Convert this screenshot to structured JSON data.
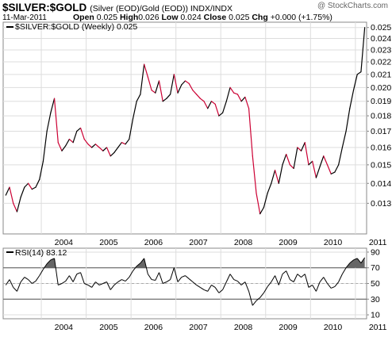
{
  "header": {
    "symbol": "$SILVER:$GOLD",
    "subtitle": "(Silver (EOD)/Gold (EOD))  INDX/INDX",
    "date": "11-Mar-2011",
    "open_label": "Open",
    "open": "0.025",
    "high_label": "High",
    "high": "0.026",
    "low_label": "Low",
    "low": "0.024",
    "close_label": "Close",
    "close": "0.025",
    "chg_label": "Chg",
    "chg": "+0.000 (+1.75%)",
    "watermark": "@ StockCharts.com"
  },
  "colors": {
    "up_line": "#000000",
    "down_line": "#cc0033",
    "grid": "#dddddd",
    "rsi_fill": "#666666",
    "legend_swatch": "#000000"
  },
  "chart_data": [
    {
      "type": "line",
      "legend": "$SILVER:$GOLD (Weekly) 0.025",
      "x_tick_labels": [
        "2004",
        "2005",
        "2006",
        "2007",
        "2008",
        "2009",
        "2010",
        "2011"
      ],
      "y_tick_labels": [
        "0.025",
        "0.024",
        "0.023",
        "0.022",
        "0.021",
        "0.020",
        "0.019",
        "0.018",
        "0.017",
        "0.016",
        "0.015",
        "0.014",
        "0.013"
      ],
      "ylim": [
        0.0116,
        0.0255
      ],
      "y_scale": "log",
      "grid": true,
      "legend_position": "top-left",
      "series": [
        {
          "x": [
            "2003-03",
            "2003-04",
            "2003-05",
            "2003-06",
            "2003-07",
            "2003-08",
            "2003-09",
            "2003-10",
            "2003-11",
            "2003-12",
            "2004-01",
            "2004-02",
            "2004-03",
            "2004-04",
            "2004-05",
            "2004-06",
            "2004-07",
            "2004-08",
            "2004-09",
            "2004-10",
            "2004-11",
            "2004-12",
            "2005-01",
            "2005-02",
            "2005-03",
            "2005-04",
            "2005-05",
            "2005-06",
            "2005-07",
            "2005-08",
            "2005-09",
            "2005-10",
            "2005-11",
            "2005-12",
            "2006-01",
            "2006-02",
            "2006-03",
            "2006-04",
            "2006-05",
            "2006-06",
            "2006-07",
            "2006-08",
            "2006-09",
            "2006-10",
            "2006-11",
            "2006-12",
            "2007-01",
            "2007-02",
            "2007-03",
            "2007-04",
            "2007-05",
            "2007-06",
            "2007-07",
            "2007-08",
            "2007-09",
            "2007-10",
            "2007-11",
            "2007-12",
            "2008-01",
            "2008-02",
            "2008-03",
            "2008-04",
            "2008-05",
            "2008-06",
            "2008-07",
            "2008-08",
            "2008-09",
            "2008-10",
            "2008-11",
            "2008-12",
            "2009-01",
            "2009-02",
            "2009-03",
            "2009-04",
            "2009-05",
            "2009-06",
            "2009-07",
            "2009-08",
            "2009-09",
            "2009-10",
            "2009-11",
            "2009-12",
            "2010-01",
            "2010-02",
            "2010-03",
            "2010-04",
            "2010-05",
            "2010-06",
            "2010-07",
            "2010-08",
            "2010-09",
            "2010-10",
            "2010-11",
            "2010-12",
            "2011-01",
            "2011-02",
            "2011-03"
          ],
          "values": [
            0.0134,
            0.0138,
            0.013,
            0.0126,
            0.0133,
            0.0138,
            0.014,
            0.0137,
            0.0138,
            0.0142,
            0.0152,
            0.017,
            0.0182,
            0.0192,
            0.0163,
            0.0158,
            0.0161,
            0.0165,
            0.0163,
            0.017,
            0.0172,
            0.0165,
            0.0162,
            0.016,
            0.0162,
            0.016,
            0.0158,
            0.016,
            0.0155,
            0.0157,
            0.016,
            0.0163,
            0.0162,
            0.0165,
            0.0178,
            0.019,
            0.0195,
            0.0218,
            0.0208,
            0.0198,
            0.0196,
            0.0205,
            0.019,
            0.0192,
            0.0195,
            0.021,
            0.0196,
            0.0202,
            0.0205,
            0.0203,
            0.0198,
            0.0195,
            0.0192,
            0.019,
            0.0185,
            0.019,
            0.0188,
            0.018,
            0.0182,
            0.019,
            0.02,
            0.0196,
            0.0195,
            0.019,
            0.0193,
            0.0185,
            0.0155,
            0.0135,
            0.0125,
            0.0128,
            0.0135,
            0.014,
            0.0147,
            0.014,
            0.015,
            0.0156,
            0.015,
            0.0148,
            0.016,
            0.0158,
            0.0163,
            0.015,
            0.0152,
            0.0143,
            0.0149,
            0.0155,
            0.015,
            0.0145,
            0.0146,
            0.015,
            0.016,
            0.017,
            0.0185,
            0.0198,
            0.021,
            0.0212,
            0.025
          ]
        }
      ]
    },
    {
      "type": "line",
      "legend": "RSI(14) 83.12",
      "x_tick_labels": [
        "2004",
        "2005",
        "2006",
        "2007",
        "2008",
        "2009",
        "2010",
        "2011"
      ],
      "y_tick_labels": [
        "90",
        "70",
        "50",
        "30",
        "10"
      ],
      "ylim": [
        5,
        95
      ],
      "reference_lines": [
        30,
        70
      ],
      "grid": true,
      "legend_position": "top-left",
      "series": [
        {
          "x": [
            "2003-03",
            "2003-04",
            "2003-05",
            "2003-06",
            "2003-07",
            "2003-08",
            "2003-09",
            "2003-10",
            "2003-11",
            "2003-12",
            "2004-01",
            "2004-02",
            "2004-03",
            "2004-04",
            "2004-05",
            "2004-06",
            "2004-07",
            "2004-08",
            "2004-09",
            "2004-10",
            "2004-11",
            "2004-12",
            "2005-01",
            "2005-02",
            "2005-03",
            "2005-04",
            "2005-05",
            "2005-06",
            "2005-07",
            "2005-08",
            "2005-09",
            "2005-10",
            "2005-11",
            "2005-12",
            "2006-01",
            "2006-02",
            "2006-03",
            "2006-04",
            "2006-05",
            "2006-06",
            "2006-07",
            "2006-08",
            "2006-09",
            "2006-10",
            "2006-11",
            "2006-12",
            "2007-01",
            "2007-02",
            "2007-03",
            "2007-04",
            "2007-05",
            "2007-06",
            "2007-07",
            "2007-08",
            "2007-09",
            "2007-10",
            "2007-11",
            "2007-12",
            "2008-01",
            "2008-02",
            "2008-03",
            "2008-04",
            "2008-05",
            "2008-06",
            "2008-07",
            "2008-08",
            "2008-09",
            "2008-10",
            "2008-11",
            "2008-12",
            "2009-01",
            "2009-02",
            "2009-03",
            "2009-04",
            "2009-05",
            "2009-06",
            "2009-07",
            "2009-08",
            "2009-09",
            "2009-10",
            "2009-11",
            "2009-12",
            "2010-01",
            "2010-02",
            "2010-03",
            "2010-04",
            "2010-05",
            "2010-06",
            "2010-07",
            "2010-08",
            "2010-09",
            "2010-10",
            "2010-11",
            "2010-12",
            "2011-01",
            "2011-02",
            "2011-03"
          ],
          "values": [
            48,
            55,
            45,
            40,
            52,
            58,
            55,
            50,
            53,
            60,
            68,
            75,
            80,
            82,
            48,
            50,
            53,
            60,
            52,
            62,
            64,
            50,
            48,
            45,
            52,
            48,
            50,
            52,
            42,
            48,
            52,
            55,
            53,
            58,
            66,
            72,
            76,
            82,
            62,
            55,
            54,
            64,
            50,
            52,
            55,
            70,
            52,
            58,
            60,
            56,
            52,
            48,
            45,
            42,
            40,
            48,
            45,
            38,
            42,
            52,
            62,
            55,
            53,
            48,
            52,
            40,
            22,
            28,
            32,
            38,
            46,
            52,
            60,
            48,
            62,
            66,
            55,
            52,
            62,
            58,
            62,
            45,
            48,
            40,
            52,
            58,
            50,
            44,
            46,
            52,
            62,
            70,
            76,
            80,
            82,
            76,
            83
          ]
        }
      ]
    }
  ]
}
